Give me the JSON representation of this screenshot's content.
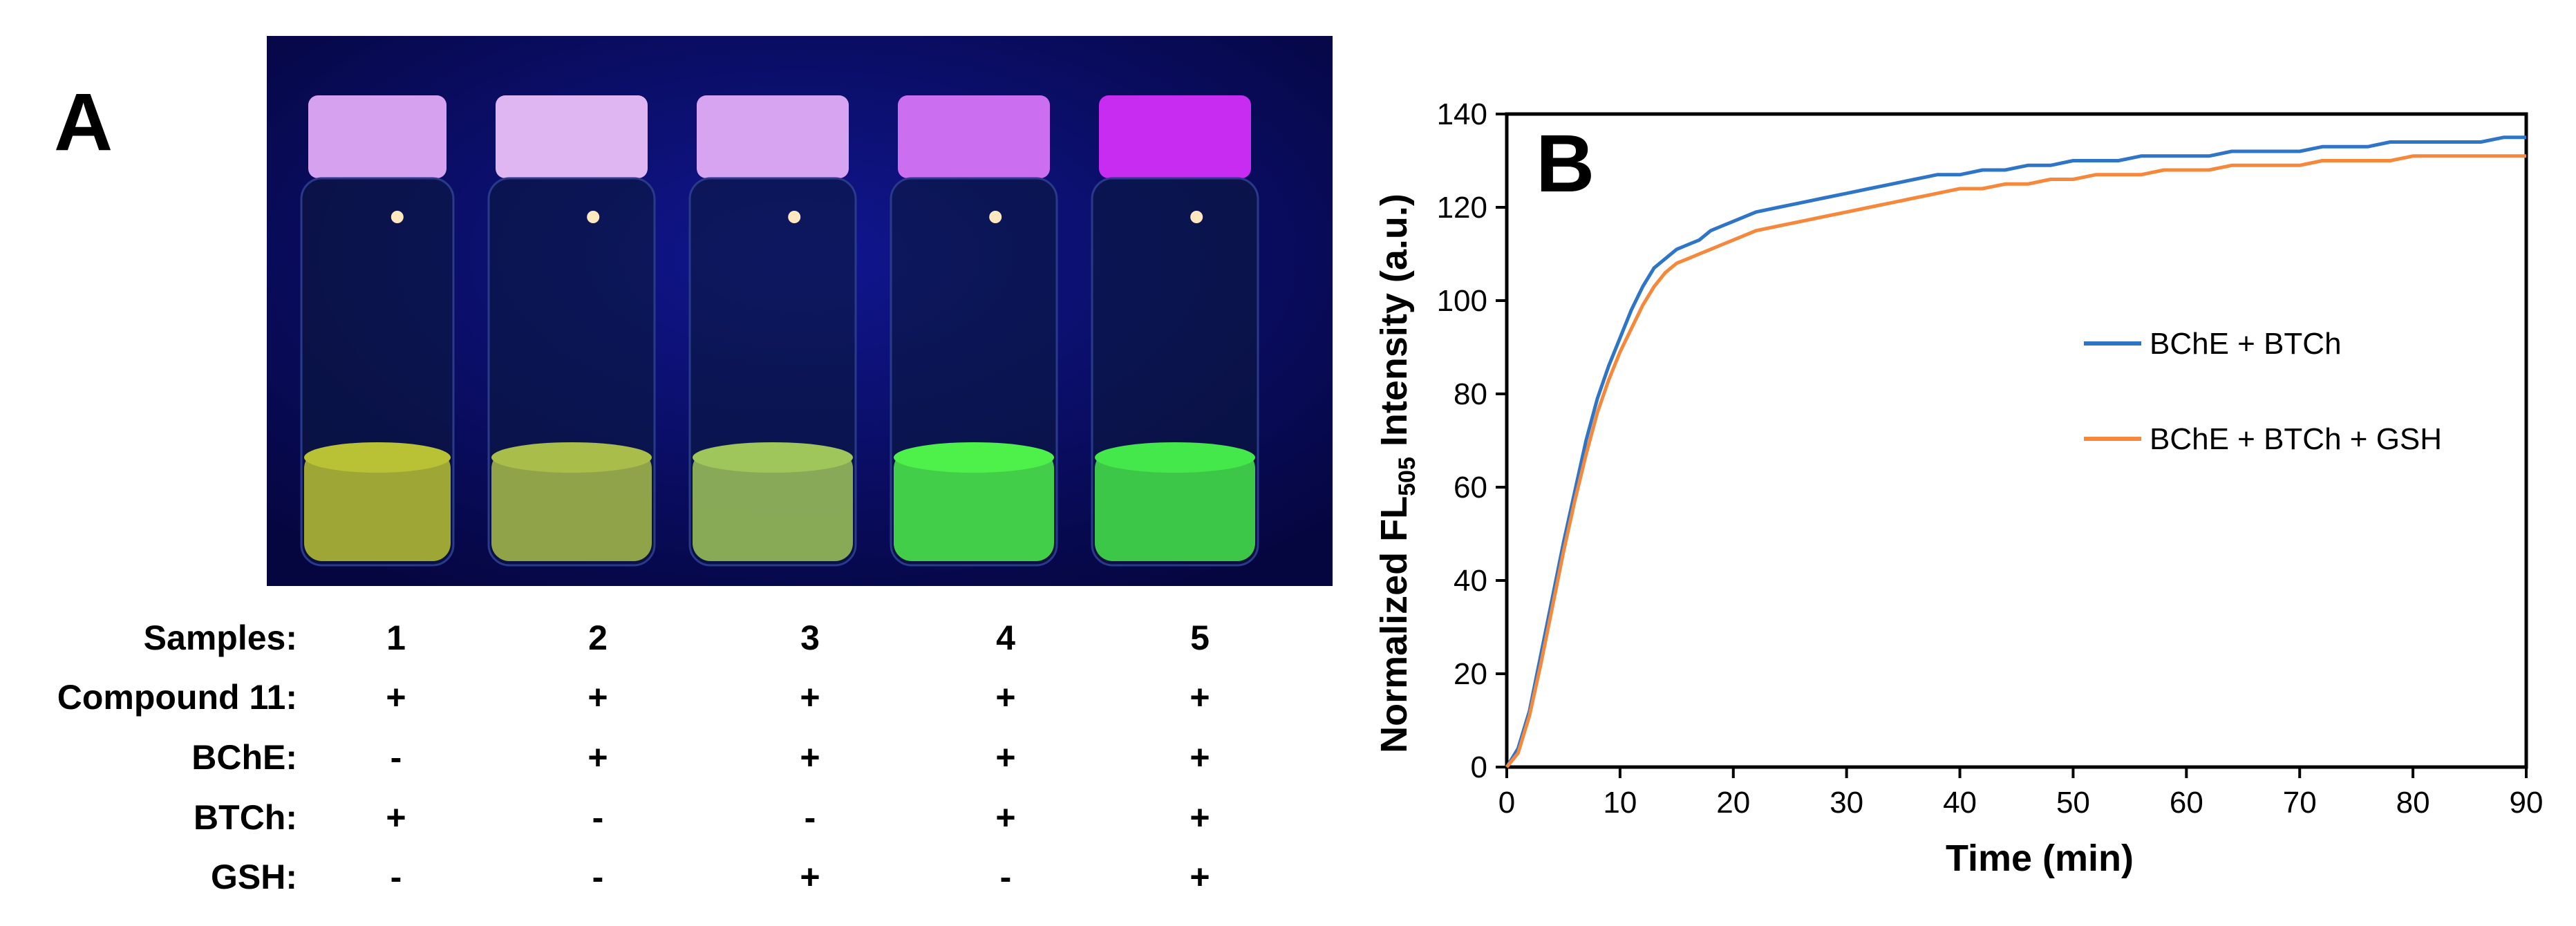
{
  "panels": {
    "a_label": "A",
    "b_label": "B"
  },
  "sample_table": {
    "rows": [
      {
        "label": "Samples:",
        "values": [
          "1",
          "2",
          "3",
          "4",
          "5"
        ]
      },
      {
        "label": "Compound 11:",
        "values": [
          "+",
          "+",
          "+",
          "+",
          "+"
        ]
      },
      {
        "label": "BChE:",
        "values": [
          "-",
          "+",
          "+",
          "+",
          "+"
        ]
      },
      {
        "label": "BTCh:",
        "values": [
          "+",
          "-",
          "-",
          "+",
          "+"
        ]
      },
      {
        "label": "GSH:",
        "values": [
          "-",
          "-",
          "+",
          "-",
          "+"
        ]
      }
    ]
  },
  "photo": {
    "vials": [
      {
        "sample": "1",
        "solution_color": "#b8c234",
        "cap_color": "#d6a2f0"
      },
      {
        "sample": "2",
        "solution_color": "#a8bd4a",
        "cap_color": "#e0b6f2"
      },
      {
        "sample": "3",
        "solution_color": "#9fc65a",
        "cap_color": "#d7a4f2"
      },
      {
        "sample": "4",
        "solution_color": "#4ef04a",
        "cap_color": "#cc6ef0"
      },
      {
        "sample": "5",
        "solution_color": "#45e84a",
        "cap_color": "#c82cf0"
      }
    ],
    "background_color": "#0a0c78"
  },
  "chart_data": {
    "type": "line",
    "title": "",
    "xlabel": "Time (min)",
    "ylabel_main": "Normalized FL",
    "ylabel_sub": "505",
    "ylabel_tail": " Intensity (a.u.)",
    "xlim": [
      0,
      90
    ],
    "ylim": [
      0,
      140
    ],
    "xticks": [
      "0",
      "10",
      "20",
      "30",
      "40",
      "50",
      "60",
      "70",
      "80",
      "90"
    ],
    "yticks": [
      "0",
      "20",
      "40",
      "60",
      "80",
      "100",
      "120",
      "140"
    ],
    "grid": false,
    "legend_position": "right-middle",
    "series": [
      {
        "name": "BChE + BTCh",
        "color": "#2e75c8",
        "x": [
          0,
          1,
          2,
          3,
          4,
          5,
          6,
          7,
          8,
          9,
          10,
          11,
          12,
          13,
          14,
          15,
          16,
          17,
          18,
          19,
          20,
          22,
          24,
          26,
          28,
          30,
          32,
          34,
          36,
          38,
          40,
          42,
          44,
          46,
          48,
          50,
          52,
          54,
          56,
          58,
          60,
          62,
          64,
          66,
          68,
          70,
          72,
          74,
          76,
          78,
          80,
          82,
          84,
          86,
          88,
          90
        ],
        "y": [
          0,
          4,
          12,
          24,
          36,
          48,
          59,
          70,
          79,
          86,
          92,
          98,
          103,
          107,
          109,
          111,
          112,
          113,
          115,
          116,
          117,
          119,
          120,
          121,
          122,
          123,
          124,
          125,
          126,
          127,
          127,
          128,
          128,
          129,
          129,
          130,
          130,
          130,
          131,
          131,
          131,
          131,
          132,
          132,
          132,
          132,
          133,
          133,
          133,
          134,
          134,
          134,
          134,
          134,
          135,
          135
        ]
      },
      {
        "name": "BChE + BTCh + GSH",
        "color": "#f5883a",
        "x": [
          0,
          1,
          2,
          3,
          4,
          5,
          6,
          7,
          8,
          9,
          10,
          11,
          12,
          13,
          14,
          15,
          16,
          17,
          18,
          19,
          20,
          22,
          24,
          26,
          28,
          30,
          32,
          34,
          36,
          38,
          40,
          42,
          44,
          46,
          48,
          50,
          52,
          54,
          56,
          58,
          60,
          62,
          64,
          66,
          68,
          70,
          72,
          74,
          76,
          78,
          80,
          82,
          84,
          86,
          88,
          90
        ],
        "y": [
          0,
          3,
          11,
          22,
          34,
          46,
          57,
          67,
          76,
          83,
          89,
          94,
          99,
          103,
          106,
          108,
          109,
          110,
          111,
          112,
          113,
          115,
          116,
          117,
          118,
          119,
          120,
          121,
          122,
          123,
          124,
          124,
          125,
          125,
          126,
          126,
          127,
          127,
          127,
          128,
          128,
          128,
          129,
          129,
          129,
          129,
          130,
          130,
          130,
          130,
          131,
          131,
          131,
          131,
          131,
          131
        ]
      }
    ]
  }
}
